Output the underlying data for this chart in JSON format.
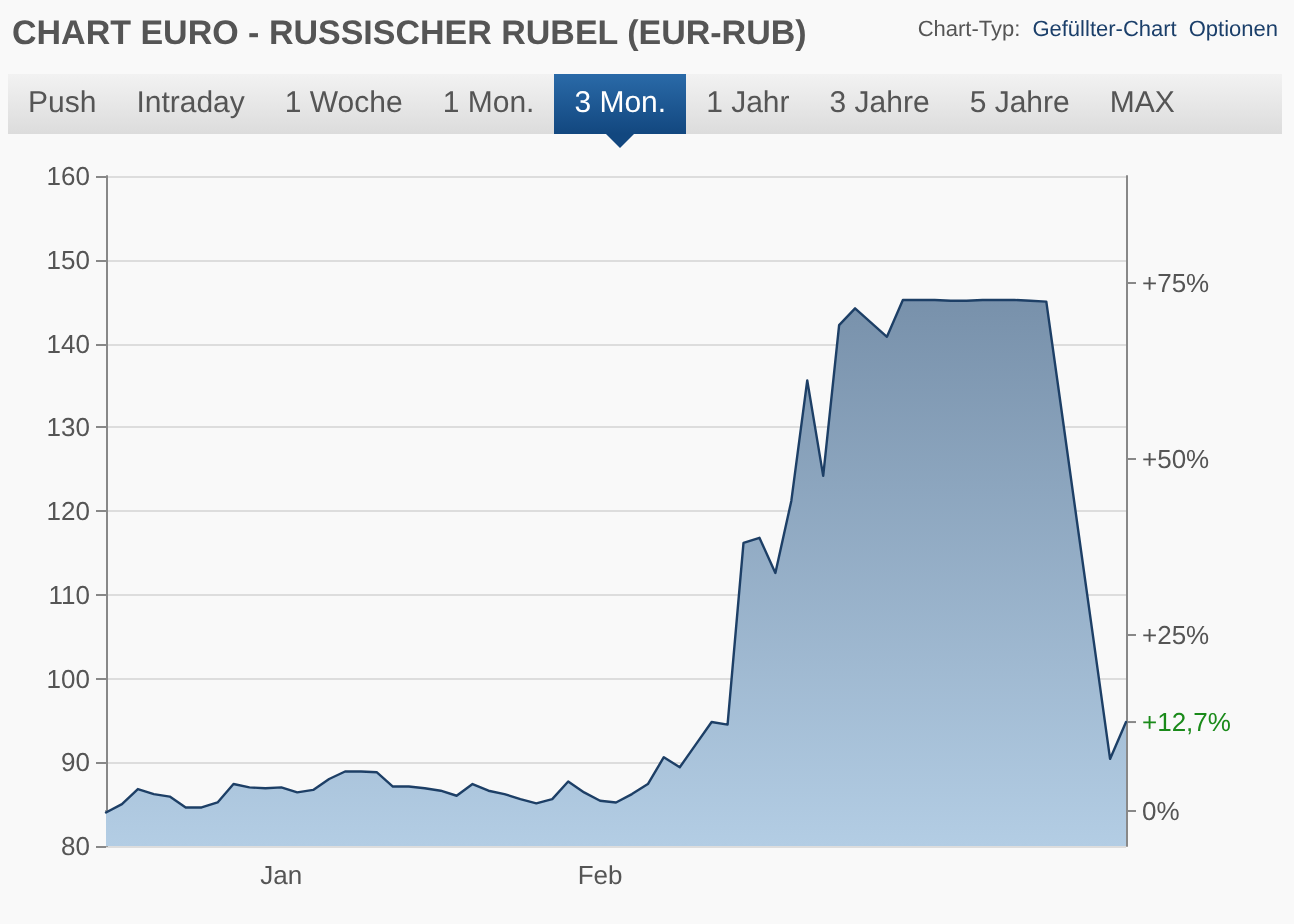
{
  "chart_data": {
    "type": "area",
    "title": "CHART EURO - RUSSISCHER RUBEL (EUR-RUB)",
    "annotations": [
      "Chart-Typ:",
      "Gefüllter-Chart",
      "Optionen",
      "Push",
      "Intraday",
      "1 Woche",
      "1 Mon.",
      "3 Mon.",
      "1 Jahr",
      "3 Jahre",
      "5 Jahre",
      "MAX",
      "+12,7%"
    ],
    "categories": [
      null,
      null,
      null,
      null,
      null,
      null,
      null,
      null,
      null,
      null,
      null,
      "Jan",
      null,
      null,
      null,
      null,
      null,
      null,
      null,
      null,
      null,
      null,
      null,
      null,
      null,
      null,
      null,
      null,
      null,
      null,
      null,
      "Feb",
      null,
      null,
      null,
      null,
      null,
      null,
      null,
      null,
      null,
      null,
      null,
      null,
      null,
      null,
      null,
      null,
      null,
      null,
      null,
      null,
      null,
      null,
      null,
      null,
      null,
      null,
      null,
      null,
      null,
      null,
      null,
      null,
      null
    ],
    "series": [
      {
        "color": "#1d3f66",
        "values": [
          84.0,
          85.0,
          86.8,
          86.2,
          85.9,
          84.6,
          84.6,
          85.2,
          87.4,
          87.0,
          86.9,
          87.0,
          86.4,
          86.7,
          88.0,
          88.9,
          88.9,
          88.8,
          87.1,
          87.1,
          86.9,
          86.6,
          86.0,
          87.4,
          86.6,
          86.2,
          85.6,
          85.1,
          85.6,
          87.7,
          86.4,
          85.4,
          85.2,
          86.2,
          87.4,
          90.6,
          89.4,
          92.1,
          94.8,
          94.5,
          116.2,
          116.8,
          112.6,
          121.2,
          135.6,
          124.2,
          142.2,
          144.2,
          142.5,
          140.8,
          145.2,
          145.2,
          145.2,
          145.1,
          145.1,
          145.2,
          145.2,
          145.2,
          145.1,
          145.0,
          131.4,
          117.7,
          104.1,
          90.4,
          94.8
        ]
      }
    ],
    "ylim": [
      80,
      160
    ],
    "yticks": [
      80,
      90,
      100,
      110,
      120,
      130,
      140,
      150,
      160
    ],
    "y2lim": [
      -4.9,
      90.2
    ],
    "y2ticks": [
      {
        "value": 0,
        "label": "0%"
      },
      {
        "value": 25,
        "label": "+25%"
      },
      {
        "value": 50,
        "label": "+50%"
      },
      {
        "value": 75,
        "label": "+75%"
      }
    ],
    "grid": "y",
    "marker": "none",
    "line_style": "solid"
  }
}
